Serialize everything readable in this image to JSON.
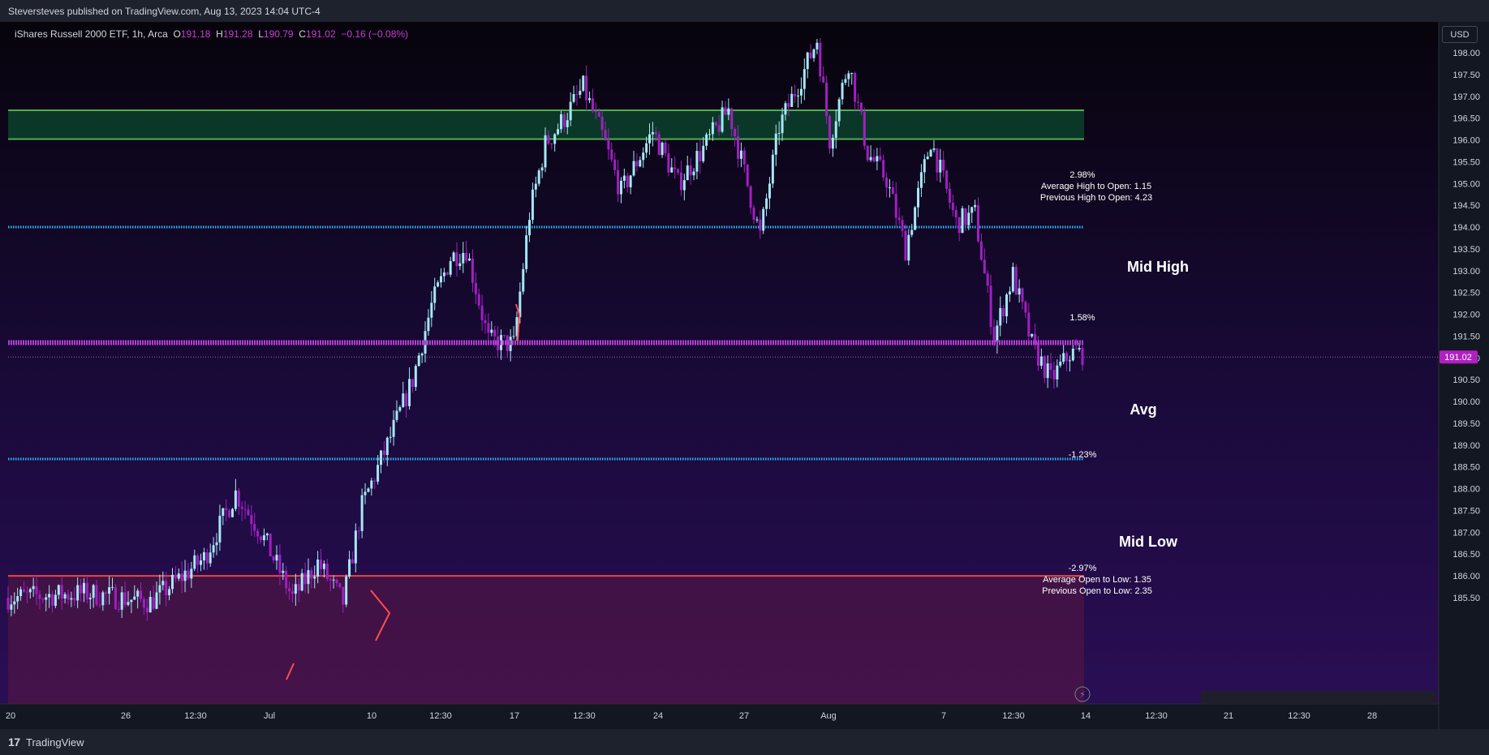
{
  "header": {
    "published": "Steversteves published on TradingView.com, Aug 13, 2023 14:04 UTC-4"
  },
  "legend": {
    "symbol": "iShares Russell 2000 ETF, 1h, Arca",
    "o_label": "O",
    "o_value": "191.18",
    "h_label": "H",
    "h_value": "191.28",
    "l_label": "L",
    "l_value": "190.79",
    "c_label": "C",
    "c_value": "191.02",
    "change": "−0.16 (−0.08%)"
  },
  "currency_button": "USD",
  "footer": {
    "logo": "17",
    "brand": "TradingView"
  },
  "colors": {
    "bull": "#a5e8f5",
    "bear": "#a020c0",
    "zone_green": "#4caf50",
    "mid_line": "#29b6f6",
    "avg_line": "#b040d0",
    "low_line": "#ef4444",
    "price_tag": "#b020c0"
  },
  "chart_data": {
    "type": "candlestick",
    "title": "",
    "ylim": [
      185.35,
      198.85
    ],
    "y_ticks": [
      "198.00",
      "197.50",
      "197.00",
      "196.50",
      "196.00",
      "195.50",
      "195.00",
      "194.50",
      "194.00",
      "193.50",
      "193.00",
      "192.50",
      "192.00",
      "191.50",
      "191.00",
      "190.50",
      "190.00",
      "189.50",
      "189.00",
      "188.50",
      "188.00",
      "187.50",
      "187.00",
      "186.50",
      "186.00",
      "185.50"
    ],
    "x_ticks": [
      "20",
      "26",
      "12:30",
      "Jul",
      "10",
      "12:30",
      "17",
      "12:30",
      "24",
      "27",
      "Aug",
      "7",
      "12:30",
      "14",
      "12:30",
      "21",
      "12:30",
      "28"
    ],
    "last_price": "191.02",
    "levels": [
      {
        "name": "green-zone-top",
        "value": 196.68
      },
      {
        "name": "green-zone-bottom",
        "value": 196.02
      },
      {
        "name": "mid-high",
        "value": 194.0
      },
      {
        "name": "avg",
        "value": 191.35
      },
      {
        "name": "mid-low",
        "value": 188.68
      },
      {
        "name": "low",
        "value": 186.0
      }
    ],
    "labels": {
      "mid_high": "Mid High",
      "avg": "Avg",
      "mid_low": "Mid Low",
      "pct_high": "2.98%",
      "avg_high_open": "Average High to Open: 1.15",
      "prev_high_open": "Previous High to Open: 4.23",
      "pct_mid_high": "1.58%",
      "pct_avg": "-1.23%",
      "pct_low": "-2.97%",
      "avg_open_low": "Average Open to Low: 1.35",
      "prev_open_low": "Previous Open to Low: 2.35"
    },
    "anchors": [
      {
        "t": 0,
        "p": 185.5
      },
      {
        "t": 25,
        "p": 185.6
      },
      {
        "t": 45,
        "p": 185.4
      },
      {
        "t": 62,
        "p": 186.4
      },
      {
        "t": 72,
        "p": 187.9
      },
      {
        "t": 80,
        "p": 187.0
      },
      {
        "t": 90,
        "p": 185.5
      },
      {
        "t": 98,
        "p": 186.3
      },
      {
        "t": 106,
        "p": 185.4
      },
      {
        "t": 112,
        "p": 187.6
      },
      {
        "t": 120,
        "p": 189.0
      },
      {
        "t": 128,
        "p": 190.5
      },
      {
        "t": 134,
        "p": 192.2
      },
      {
        "t": 140,
        "p": 193.3
      },
      {
        "t": 145,
        "p": 193.5
      },
      {
        "t": 152,
        "p": 191.4
      },
      {
        "t": 160,
        "p": 191.3
      },
      {
        "t": 165,
        "p": 194.3
      },
      {
        "t": 170,
        "p": 195.9
      },
      {
        "t": 176,
        "p": 196.5
      },
      {
        "t": 182,
        "p": 197.2
      },
      {
        "t": 188,
        "p": 196.1
      },
      {
        "t": 194,
        "p": 194.8
      },
      {
        "t": 204,
        "p": 196.2
      },
      {
        "t": 212,
        "p": 195.0
      },
      {
        "t": 220,
        "p": 195.8
      },
      {
        "t": 228,
        "p": 196.7
      },
      {
        "t": 238,
        "p": 193.8
      },
      {
        "t": 244,
        "p": 196.3
      },
      {
        "t": 252,
        "p": 197.6
      },
      {
        "t": 256,
        "p": 198.3
      },
      {
        "t": 260,
        "p": 196.0
      },
      {
        "t": 266,
        "p": 197.8
      },
      {
        "t": 272,
        "p": 195.7
      },
      {
        "t": 278,
        "p": 195.1
      },
      {
        "t": 284,
        "p": 193.5
      },
      {
        "t": 292,
        "p": 196.0
      },
      {
        "t": 300,
        "p": 194.1
      },
      {
        "t": 306,
        "p": 194.3
      },
      {
        "t": 312,
        "p": 191.5
      },
      {
        "t": 318,
        "p": 192.9
      },
      {
        "t": 324,
        "p": 191.3
      },
      {
        "t": 330,
        "p": 190.5
      },
      {
        "t": 336,
        "p": 191.1
      },
      {
        "t": 340,
        "p": 191.1
      }
    ]
  }
}
